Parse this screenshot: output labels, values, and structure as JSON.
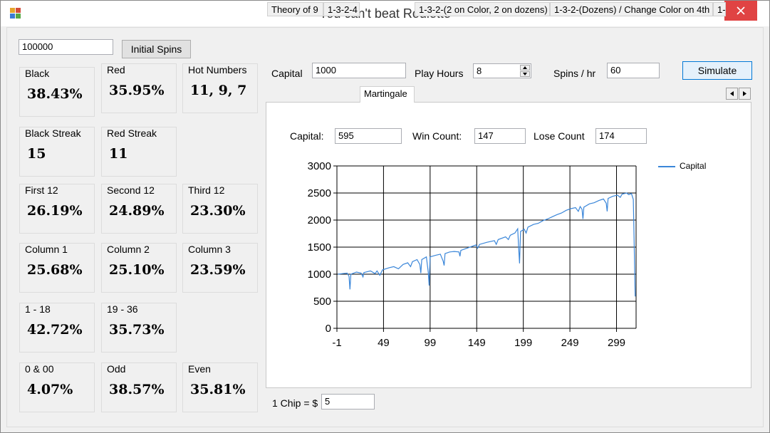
{
  "window": {
    "title": "You can't beat Roulette",
    "accent_close": "#e04343"
  },
  "spins": {
    "initial_value": "100000",
    "button_label": "Initial Spins"
  },
  "stats": [
    {
      "key": "black",
      "label": "Black",
      "value": "38.43%"
    },
    {
      "key": "red",
      "label": "Red",
      "value": "35.95%"
    },
    {
      "key": "hot",
      "label": "Hot Numbers",
      "value": "11, 9, 7"
    },
    {
      "key": "black-streak",
      "label": "Black Streak",
      "value": "15"
    },
    {
      "key": "red-streak",
      "label": "Red Streak",
      "value": "11"
    },
    {
      "key": "first12",
      "label": "First 12",
      "value": "26.19%"
    },
    {
      "key": "second12",
      "label": "Second 12",
      "value": "24.89%"
    },
    {
      "key": "third12",
      "label": "Third 12",
      "value": "23.30%"
    },
    {
      "key": "col1",
      "label": "Column 1",
      "value": "25.68%"
    },
    {
      "key": "col2",
      "label": "Column 2",
      "value": "25.10%"
    },
    {
      "key": "col3",
      "label": "Column 3",
      "value": "23.59%"
    },
    {
      "key": "low",
      "label": "1 - 18",
      "value": "42.72%"
    },
    {
      "key": "high",
      "label": "19 - 36",
      "value": "35.73%"
    },
    {
      "key": "zeros",
      "label": "0 & 00",
      "value": "4.07%"
    },
    {
      "key": "odd",
      "label": "Odd",
      "value": "38.57%"
    },
    {
      "key": "even",
      "label": "Even",
      "value": "35.81%"
    }
  ],
  "sim": {
    "capital_label": "Capital",
    "capital_value": "1000",
    "hours_label": "Play Hours",
    "hours_value": "8",
    "spins_label": "Spins / hr",
    "spins_value": "60",
    "simulate_label": "Simulate"
  },
  "tabs": [
    "Theory of 9",
    "1-3-2-4",
    "Martingale",
    "1-3-2-(2 on Color, 2 on dozens)",
    "1-3-2-(Dozens) / Change Color on 4th",
    "1-"
  ],
  "active_tab": "Martingale",
  "result": {
    "capital_label": "Capital:",
    "capital_value": "595",
    "win_label": "Win Count:",
    "win_value": "147",
    "lose_label": "Lose Count",
    "lose_value": "174"
  },
  "chip": {
    "label": "1 Chip = $",
    "value": "5"
  },
  "chart_data": {
    "type": "line",
    "title": "",
    "xlabel": "",
    "ylabel": "",
    "xlim": [
      -1,
      320
    ],
    "ylim": [
      0,
      3000
    ],
    "x_ticks": [
      "-1",
      "49",
      "99",
      "149",
      "199",
      "249",
      "299"
    ],
    "y_ticks": [
      "0",
      "500",
      "1000",
      "1500",
      "2000",
      "2500",
      "3000"
    ],
    "grid": true,
    "legend": "right",
    "series": [
      {
        "name": "Capital",
        "color": "#3a86d9",
        "points": [
          [
            0,
            1000
          ],
          [
            5,
            1010
          ],
          [
            10,
            1020
          ],
          [
            12,
            960
          ],
          [
            13,
            720
          ],
          [
            14,
            1000
          ],
          [
            20,
            1040
          ],
          [
            25,
            1020
          ],
          [
            27,
            950
          ],
          [
            28,
            1030
          ],
          [
            35,
            1060
          ],
          [
            40,
            1010
          ],
          [
            42,
            1060
          ],
          [
            45,
            980
          ],
          [
            48,
            1080
          ],
          [
            55,
            1120
          ],
          [
            60,
            1140
          ],
          [
            65,
            1100
          ],
          [
            70,
            1180
          ],
          [
            75,
            1210
          ],
          [
            78,
            1140
          ],
          [
            80,
            1230
          ],
          [
            85,
            1270
          ],
          [
            88,
            1180
          ],
          [
            89,
            1020
          ],
          [
            90,
            1270
          ],
          [
            95,
            1320
          ],
          [
            97,
            1040
          ],
          [
            98,
            790
          ],
          [
            99,
            1320
          ],
          [
            105,
            1350
          ],
          [
            110,
            1370
          ],
          [
            113,
            1240
          ],
          [
            114,
            1160
          ],
          [
            115,
            1380
          ],
          [
            120,
            1410
          ],
          [
            125,
            1420
          ],
          [
            130,
            1410
          ],
          [
            131,
            1330
          ],
          [
            132,
            1440
          ],
          [
            140,
            1490
          ],
          [
            148,
            1540
          ],
          [
            150,
            1480
          ],
          [
            152,
            1550
          ],
          [
            160,
            1590
          ],
          [
            168,
            1620
          ],
          [
            170,
            1550
          ],
          [
            172,
            1640
          ],
          [
            180,
            1690
          ],
          [
            183,
            1640
          ],
          [
            185,
            1720
          ],
          [
            190,
            1760
          ],
          [
            193,
            1840
          ],
          [
            194,
            1500
          ],
          [
            195,
            1200
          ],
          [
            196,
            1790
          ],
          [
            200,
            1830
          ],
          [
            202,
            1760
          ],
          [
            204,
            1870
          ],
          [
            210,
            1920
          ],
          [
            215,
            1940
          ],
          [
            220,
            1990
          ],
          [
            225,
            2020
          ],
          [
            230,
            2060
          ],
          [
            235,
            2100
          ],
          [
            240,
            2130
          ],
          [
            245,
            2180
          ],
          [
            250,
            2210
          ],
          [
            255,
            2230
          ],
          [
            258,
            2160
          ],
          [
            260,
            2250
          ],
          [
            262,
            2200
          ],
          [
            263,
            2020
          ],
          [
            264,
            2240
          ],
          [
            270,
            2300
          ],
          [
            275,
            2320
          ],
          [
            280,
            2360
          ],
          [
            285,
            2390
          ],
          [
            288,
            2310
          ],
          [
            289,
            2160
          ],
          [
            290,
            2400
          ],
          [
            295,
            2440
          ],
          [
            300,
            2460
          ],
          [
            303,
            2420
          ],
          [
            305,
            2480
          ],
          [
            310,
            2500
          ],
          [
            312,
            2470
          ],
          [
            315,
            2490
          ],
          [
            317,
            2380
          ],
          [
            318,
            1500
          ],
          [
            319,
            590
          ]
        ]
      }
    ]
  }
}
